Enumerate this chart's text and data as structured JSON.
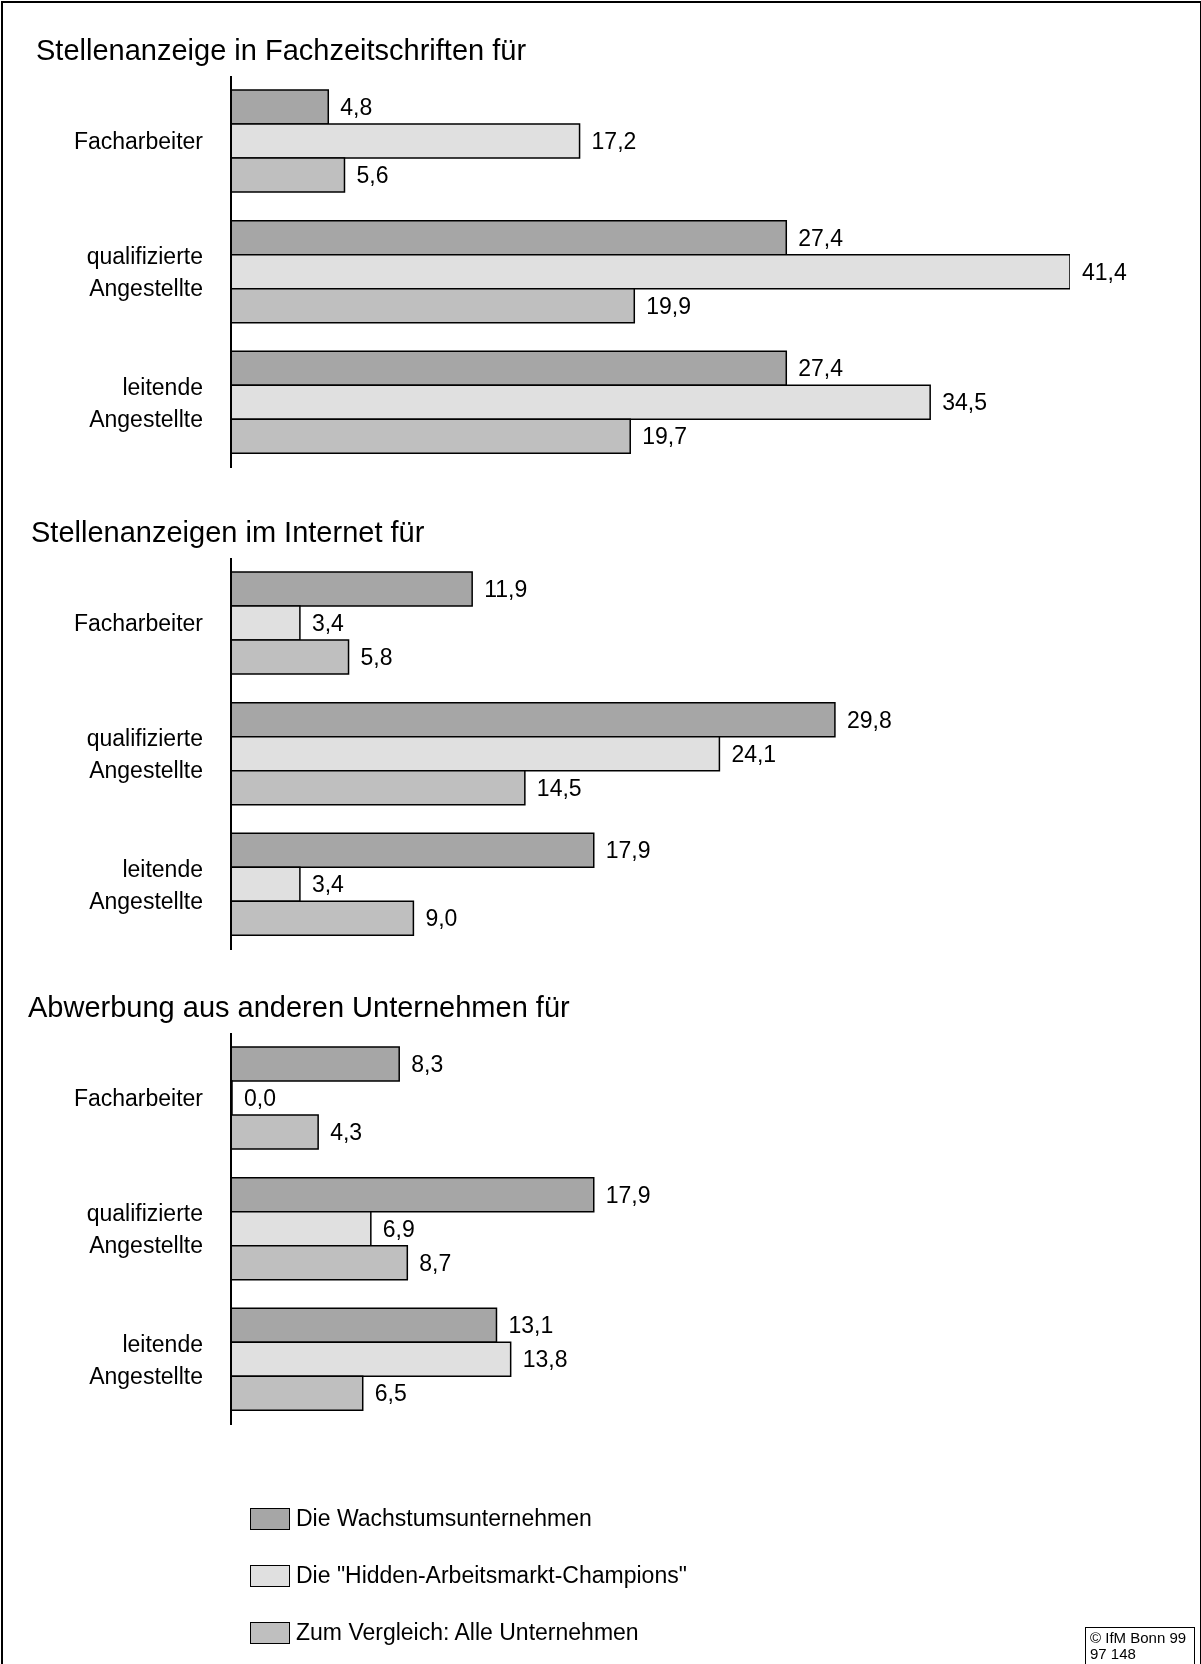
{
  "chart_data": [
    {
      "type": "bar",
      "orientation": "horizontal",
      "title": "Stellenanzeige in Fachzeitschriften für",
      "categories": [
        "Facharbeiter",
        "qualifizierte Angestellte",
        "leitende Angestellte"
      ],
      "legend": false,
      "series": [
        {
          "color": "#a6a6a6",
          "values": [
            4.8,
            27.4,
            27.4
          ],
          "value_labels": [
            "4,8",
            "27,4",
            "27,4"
          ]
        },
        {
          "color": "#e0e0e0",
          "values": [
            17.2,
            41.4,
            34.5
          ],
          "value_labels": [
            "17,2",
            "41,4",
            "34,5"
          ]
        },
        {
          "color": "#bfbfbf",
          "values": [
            5.6,
            19.9,
            19.7
          ],
          "value_labels": [
            "5,6",
            "19,9",
            "19,7"
          ]
        }
      ]
    },
    {
      "type": "bar",
      "orientation": "horizontal",
      "title": "Stellenanzeigen im Internet für",
      "categories": [
        "Facharbeiter",
        "qualifizierte Angestellte",
        "leitende Angestellte"
      ],
      "legend": false,
      "series": [
        {
          "color": "#a6a6a6",
          "values": [
            11.9,
            29.8,
            17.9
          ],
          "value_labels": [
            "11,9",
            "29,8",
            "17,9"
          ]
        },
        {
          "color": "#e0e0e0",
          "values": [
            3.4,
            24.1,
            3.4
          ],
          "value_labels": [
            "3,4",
            "24,1",
            "3,4"
          ]
        },
        {
          "color": "#bfbfbf",
          "values": [
            5.8,
            14.5,
            9.0
          ],
          "value_labels": [
            "5,8",
            "14,5",
            "9,0"
          ]
        }
      ]
    },
    {
      "type": "bar",
      "orientation": "horizontal",
      "title": "Abwerbung aus anderen Unternehmen für",
      "categories": [
        "Facharbeiter",
        "qualifizierte Angestellte",
        "leitende Angestellte"
      ],
      "legend": "bottom",
      "annotations": [
        "© IfM Bonn 99 97 148"
      ],
      "series": [
        {
          "name": "Die Wachstumsunternehmen",
          "color": "#a6a6a6",
          "values": [
            8.3,
            17.9,
            13.1
          ],
          "value_labels": [
            "8,3",
            "17,9",
            "13,1"
          ]
        },
        {
          "name": "Die \"Hidden-Arbeitsmarkt-Champions\"",
          "color": "#e0e0e0",
          "values": [
            0.0,
            6.9,
            13.8
          ],
          "value_labels": [
            "0,0",
            "6,9",
            "13,8"
          ]
        },
        {
          "name": "Zum Vergleich: Alle Unternehmen",
          "color": "#bfbfbf",
          "values": [
            4.3,
            8.7,
            6.5
          ],
          "value_labels": [
            "4,3",
            "8,7",
            "6,5"
          ]
        }
      ]
    }
  ]
}
